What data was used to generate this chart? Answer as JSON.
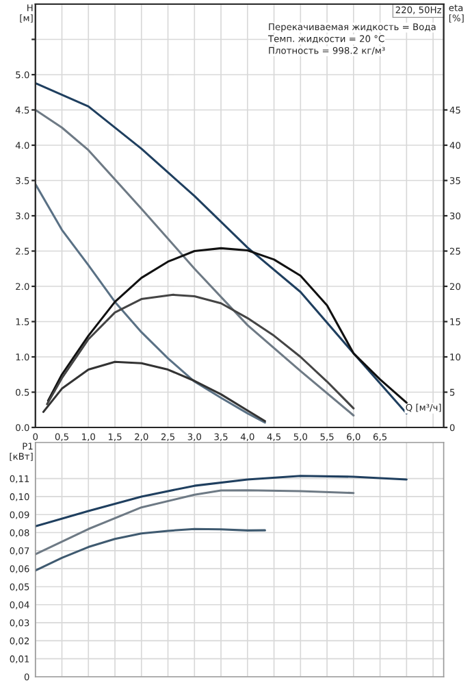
{
  "chart_data": [
    {
      "type": "line",
      "title": "220, 50Hz",
      "xlabel": "Q [м³/ч]",
      "ylabel": "H\n[м]",
      "y2label": "eta\n[%]",
      "annotations": [
        "Перекачиваемая жидкость = Вода",
        "Темп. жидкости = 20 °C",
        "Плотность = 998.2 кг/м³"
      ],
      "xlim": [
        0,
        7.7
      ],
      "ylim": [
        0,
        6.0
      ],
      "y2lim": [
        0,
        60
      ],
      "xticks": [
        0,
        {
          "value": 0.5,
          "label": "0,5"
        },
        {
          "value": 1,
          "label": "1,0"
        },
        {
          "value": 1.5,
          "label": "1,5"
        },
        {
          "value": 2,
          "label": "2,0"
        },
        {
          "value": 2.5,
          "label": "2,5"
        },
        {
          "value": 3,
          "label": "3,0"
        },
        {
          "value": 3.5,
          "label": "3,5"
        },
        {
          "value": 4,
          "label": "4,0"
        },
        {
          "value": 4.5,
          "label": "4,5"
        },
        {
          "value": 5,
          "label": "5,0"
        },
        {
          "value": 5.5,
          "label": "5,5"
        },
        {
          "value": 6,
          "label": "6,0"
        },
        {
          "value": 6.5,
          "label": "6,5"
        },
        {
          "value": 7,
          "label": null
        },
        {
          "value": 7.5,
          "label": null
        }
      ],
      "yticks": [
        {
          "value": 0,
          "label": "0.0"
        },
        {
          "value": 0.5,
          "label": "0.5"
        },
        {
          "value": 1,
          "label": "1.0"
        },
        {
          "value": 1.5,
          "label": "1.5"
        },
        {
          "value": 2,
          "label": "2.0"
        },
        {
          "value": 2.5,
          "label": "2.5"
        },
        {
          "value": 3,
          "label": "3.0"
        },
        {
          "value": 3.5,
          "label": "3.5"
        },
        {
          "value": 4,
          "label": "4.0"
        },
        {
          "value": 4.5,
          "label": "4.5"
        },
        {
          "value": 5,
          "label": "5.0"
        },
        {
          "value": 5.5,
          "label": null
        }
      ],
      "y2ticks": [
        0,
        5,
        10,
        15,
        20,
        25,
        30,
        35,
        40,
        45
      ],
      "grid": true,
      "series": [
        {
          "color": "#1f3f5f",
          "x": [
            0,
            1,
            2,
            3,
            4,
            5,
            6,
            7
          ],
          "values": [
            4.88,
            4.55,
            3.95,
            3.28,
            2.55,
            1.92,
            1.05,
            0.2
          ]
        },
        {
          "color": "#6e7a85",
          "x": [
            0,
            0.5,
            1,
            2,
            3,
            4,
            5,
            6
          ],
          "values": [
            4.5,
            4.25,
            3.93,
            3.1,
            2.25,
            1.45,
            0.8,
            0.17
          ]
        },
        {
          "color": "#5a7185",
          "x": [
            0,
            0.5,
            1,
            1.5,
            2,
            2.5,
            3,
            3.5,
            4,
            4.33
          ],
          "values": [
            3.45,
            2.8,
            2.3,
            1.78,
            1.35,
            0.98,
            0.65,
            0.42,
            0.2,
            0.07
          ]
        },
        {
          "color": "#111111",
          "axis": "y2",
          "x": [
            0.24,
            0.5,
            1,
            1.5,
            2,
            2.5,
            3,
            3.5,
            4,
            4.5,
            5,
            5.5,
            6,
            6.5,
            7
          ],
          "values": [
            3.8,
            7.5,
            13,
            17.8,
            21.2,
            23.5,
            25,
            25.4,
            25.1,
            23.8,
            21.5,
            17.3,
            10.5,
            6.8,
            3.5
          ]
        },
        {
          "color": "#444444",
          "axis": "y2",
          "x": [
            0.22,
            0.5,
            1,
            1.5,
            2,
            2.6,
            3,
            3.5,
            4,
            4.5,
            5,
            5.5,
            6
          ],
          "values": [
            3.3,
            7,
            12.5,
            16.3,
            18.2,
            18.8,
            18.6,
            17.6,
            15.5,
            13,
            10,
            6.5,
            2.7
          ]
        },
        {
          "color": "#333333",
          "axis": "y2",
          "x": [
            0.15,
            0.5,
            1,
            1.5,
            2,
            2.5,
            3,
            3.5,
            4,
            4.33
          ],
          "values": [
            2.2,
            5.5,
            8.2,
            9.3,
            9.1,
            8.2,
            6.6,
            4.7,
            2.4,
            0.9
          ]
        }
      ]
    },
    {
      "type": "line",
      "ylabel": "P1\n[кВт]",
      "xlim": [
        0,
        7.7
      ],
      "ylim": [
        0,
        0.13
      ],
      "xticks": [
        {
          "value": 0,
          "label": null
        },
        {
          "value": 0.5,
          "label": null
        },
        {
          "value": 1,
          "label": null
        },
        {
          "value": 1.5,
          "label": null
        },
        {
          "value": 2,
          "label": null
        },
        {
          "value": 2.5,
          "label": null
        },
        {
          "value": 3,
          "label": null
        },
        {
          "value": 3.5,
          "label": null
        },
        {
          "value": 4,
          "label": null
        },
        {
          "value": 4.5,
          "label": null
        },
        {
          "value": 5,
          "label": null
        },
        {
          "value": 5.5,
          "label": null
        },
        {
          "value": 6,
          "label": null
        },
        {
          "value": 6.5,
          "label": null
        },
        {
          "value": 7,
          "label": null
        },
        {
          "value": 7.5,
          "label": null
        }
      ],
      "yticks": [
        0,
        {
          "value": 0.01,
          "label": "0,01"
        },
        {
          "value": 0.02,
          "label": "0,02"
        },
        {
          "value": 0.03,
          "label": "0,03"
        },
        {
          "value": 0.04,
          "label": "0,04"
        },
        {
          "value": 0.05,
          "label": "0,05"
        },
        {
          "value": 0.06,
          "label": "0,06"
        },
        {
          "value": 0.07,
          "label": "0,07"
        },
        {
          "value": 0.08,
          "label": "0,08"
        },
        {
          "value": 0.09,
          "label": "0,09"
        },
        {
          "value": 0.1,
          "label": "0,10"
        },
        {
          "value": 0.11,
          "label": "0,11"
        }
      ],
      "tick_labels": "y",
      "grid": true,
      "series": [
        {
          "color": "#1f3f5f",
          "x": [
            0,
            1,
            2,
            3,
            4,
            5,
            6,
            7
          ],
          "values": [
            0.0835,
            0.092,
            0.1,
            0.106,
            0.1095,
            0.1115,
            0.111,
            0.1095
          ]
        },
        {
          "color": "#6e7a85",
          "x": [
            0,
            1,
            2,
            3,
            3.5,
            4,
            5,
            6
          ],
          "values": [
            0.068,
            0.082,
            0.094,
            0.101,
            0.1034,
            0.1035,
            0.103,
            0.102
          ]
        },
        {
          "color": "#3f5a70",
          "x": [
            0,
            0.5,
            1,
            1.5,
            2,
            2.5,
            3,
            3.5,
            4,
            4.33
          ],
          "values": [
            0.059,
            0.066,
            0.072,
            0.0765,
            0.0795,
            0.081,
            0.082,
            0.0818,
            0.0812,
            0.0813
          ]
        }
      ]
    }
  ]
}
